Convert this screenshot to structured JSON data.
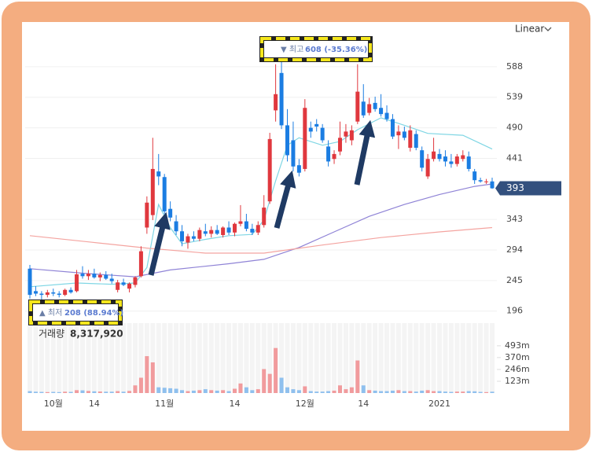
{
  "chart_data": {
    "type": "candlestick",
    "scale_menu": "Linear",
    "categories": [
      null,
      null,
      null,
      null,
      "10월",
      null,
      null,
      null,
      null,
      null,
      null,
      "14",
      null,
      null,
      null,
      null,
      null,
      null,
      null,
      null,
      null,
      null,
      null,
      "11월",
      null,
      null,
      null,
      null,
      null,
      null,
      null,
      null,
      null,
      null,
      null,
      "14",
      null,
      null,
      null,
      null,
      null,
      null,
      null,
      null,
      null,
      null,
      null,
      "12월",
      null,
      null,
      null,
      null,
      null,
      null,
      null,
      null,
      null,
      "14",
      null,
      null,
      null,
      null,
      null,
      null,
      null,
      null,
      null,
      null,
      null,
      null,
      "2021",
      null,
      null,
      null,
      null,
      null,
      null,
      null,
      null,
      null
    ],
    "open": [
      264,
      228,
      224,
      222,
      226,
      224,
      222,
      230,
      228,
      256,
      252,
      256,
      250,
      254,
      248,
      230,
      242,
      232,
      238,
      252,
      330,
      350,
      420,
      411,
      360,
      340,
      324,
      306,
      316,
      312,
      324,
      320,
      326,
      318,
      330,
      322,
      336,
      340,
      328,
      322,
      334,
      372,
      518,
      578,
      494,
      470,
      430,
      424,
      490,
      496,
      490,
      460,
      440,
      452,
      476,
      470,
      500,
      532,
      514,
      530,
      522,
      514,
      504,
      478,
      484,
      458,
      480,
      454,
      412,
      440,
      448,
      444,
      436,
      432,
      440,
      444,
      420,
      406,
      404,
      404
    ],
    "high": [
      270,
      236,
      228,
      230,
      232,
      228,
      232,
      234,
      262,
      268,
      262,
      264,
      258,
      260,
      256,
      246,
      248,
      242,
      252,
      300,
      380,
      474,
      448,
      416,
      372,
      350,
      334,
      320,
      324,
      330,
      336,
      332,
      334,
      332,
      340,
      338,
      366,
      352,
      336,
      340,
      382,
      482,
      592,
      608,
      520,
      500,
      440,
      536,
      500,
      504,
      496,
      470,
      454,
      500,
      496,
      494,
      592,
      560,
      538,
      540,
      544,
      526,
      512,
      494,
      492,
      494,
      486,
      460,
      448,
      474,
      456,
      454,
      448,
      448,
      454,
      452,
      424,
      410,
      408,
      410
    ],
    "low": [
      216,
      220,
      208,
      218,
      220,
      218,
      220,
      224,
      226,
      248,
      246,
      248,
      244,
      246,
      240,
      226,
      236,
      226,
      234,
      250,
      320,
      342,
      398,
      352,
      340,
      318,
      300,
      296,
      308,
      308,
      316,
      314,
      318,
      314,
      318,
      316,
      332,
      324,
      318,
      318,
      330,
      368,
      500,
      488,
      436,
      420,
      412,
      420,
      474,
      484,
      466,
      428,
      432,
      446,
      466,
      462,
      496,
      506,
      510,
      516,
      508,
      500,
      472,
      456,
      470,
      452,
      454,
      420,
      408,
      436,
      436,
      428,
      426,
      428,
      436,
      420,
      400,
      402,
      400,
      392
    ],
    "close": [
      222,
      224,
      222,
      226,
      224,
      222,
      230,
      226,
      255,
      252,
      256,
      250,
      254,
      248,
      244,
      242,
      238,
      240,
      250,
      292,
      370,
      424,
      412,
      356,
      346,
      324,
      308,
      316,
      312,
      326,
      320,
      326,
      320,
      330,
      322,
      336,
      340,
      328,
      322,
      334,
      362,
      472,
      544,
      494,
      446,
      428,
      418,
      522,
      484,
      492,
      470,
      436,
      448,
      474,
      484,
      486,
      548,
      510,
      528,
      520,
      512,
      504,
      476,
      484,
      474,
      486,
      458,
      426,
      440,
      452,
      440,
      436,
      432,
      444,
      446,
      424,
      406,
      404,
      404,
      393
    ],
    "up_color": "#e0383e",
    "down_color": "#1b7de2",
    "moving_averages": [
      {
        "color": "#7fd6e4",
        "x": [
          0,
          8,
          14,
          18,
          20,
          22,
          24,
          26,
          30,
          34,
          38,
          40,
          42,
          44,
          46,
          50,
          53,
          56,
          60,
          64,
          68,
          74,
          79
        ],
        "values": [
          235,
          241,
          239,
          241,
          266,
          367,
          330,
          304,
          311,
          317,
          319,
          342,
          405,
          462,
          474,
          462,
          468,
          487,
          506,
          494,
          481,
          478,
          456
        ]
      },
      {
        "color": "#8f83d6",
        "x": [
          0,
          10,
          18,
          24,
          34,
          40,
          46,
          52,
          58,
          64,
          70,
          76,
          79
        ],
        "values": [
          264,
          256,
          251,
          262,
          272,
          279,
          298,
          323,
          348,
          367,
          383,
          396,
          400
        ]
      },
      {
        "color": "#f4a4a0",
        "x": [
          0,
          10,
          20,
          30,
          40,
          50,
          60,
          70,
          79
        ],
        "values": [
          317,
          307,
          297,
          289,
          289,
          302,
          314,
          323,
          330
        ]
      }
    ],
    "ylim": [
      178,
      632
    ],
    "yticks": [
      196,
      245,
      294,
      343,
      441,
      490,
      539,
      588
    ],
    "annotations": [
      {
        "text": "▼ 최고",
        "value_text": "608 (-35.36%)"
      },
      {
        "text": "▲ 최저",
        "value_text": "208 (88.94%)"
      }
    ],
    "volume_title": "거래량",
    "volume_text": "8,317,920",
    "volume": [
      20,
      14,
      12,
      10,
      12,
      10,
      14,
      12,
      30,
      28,
      22,
      18,
      16,
      14,
      14,
      20,
      14,
      22,
      80,
      160,
      385,
      320,
      60,
      55,
      50,
      45,
      30,
      20,
      25,
      30,
      40,
      30,
      25,
      30,
      20,
      45,
      100,
      60,
      30,
      40,
      250,
      200,
      470,
      160,
      60,
      40,
      30,
      70,
      20,
      15,
      15,
      20,
      25,
      80,
      40,
      60,
      340,
      80,
      30,
      25,
      20,
      20,
      25,
      30,
      20,
      20,
      15,
      25,
      30,
      20,
      20,
      15,
      12,
      15,
      15,
      20,
      18,
      12,
      10,
      14
    ],
    "volume_up_color": "#f19b9d",
    "volume_down_color": "#8fc0ee",
    "vlim": [
      0,
      730
    ],
    "vticks": [
      {
        "value": 123,
        "label": "123m"
      },
      {
        "value": 246,
        "label": "246m"
      },
      {
        "value": 370,
        "label": "370m"
      },
      {
        "value": 493,
        "label": "493m"
      }
    ],
    "grid": true
  }
}
